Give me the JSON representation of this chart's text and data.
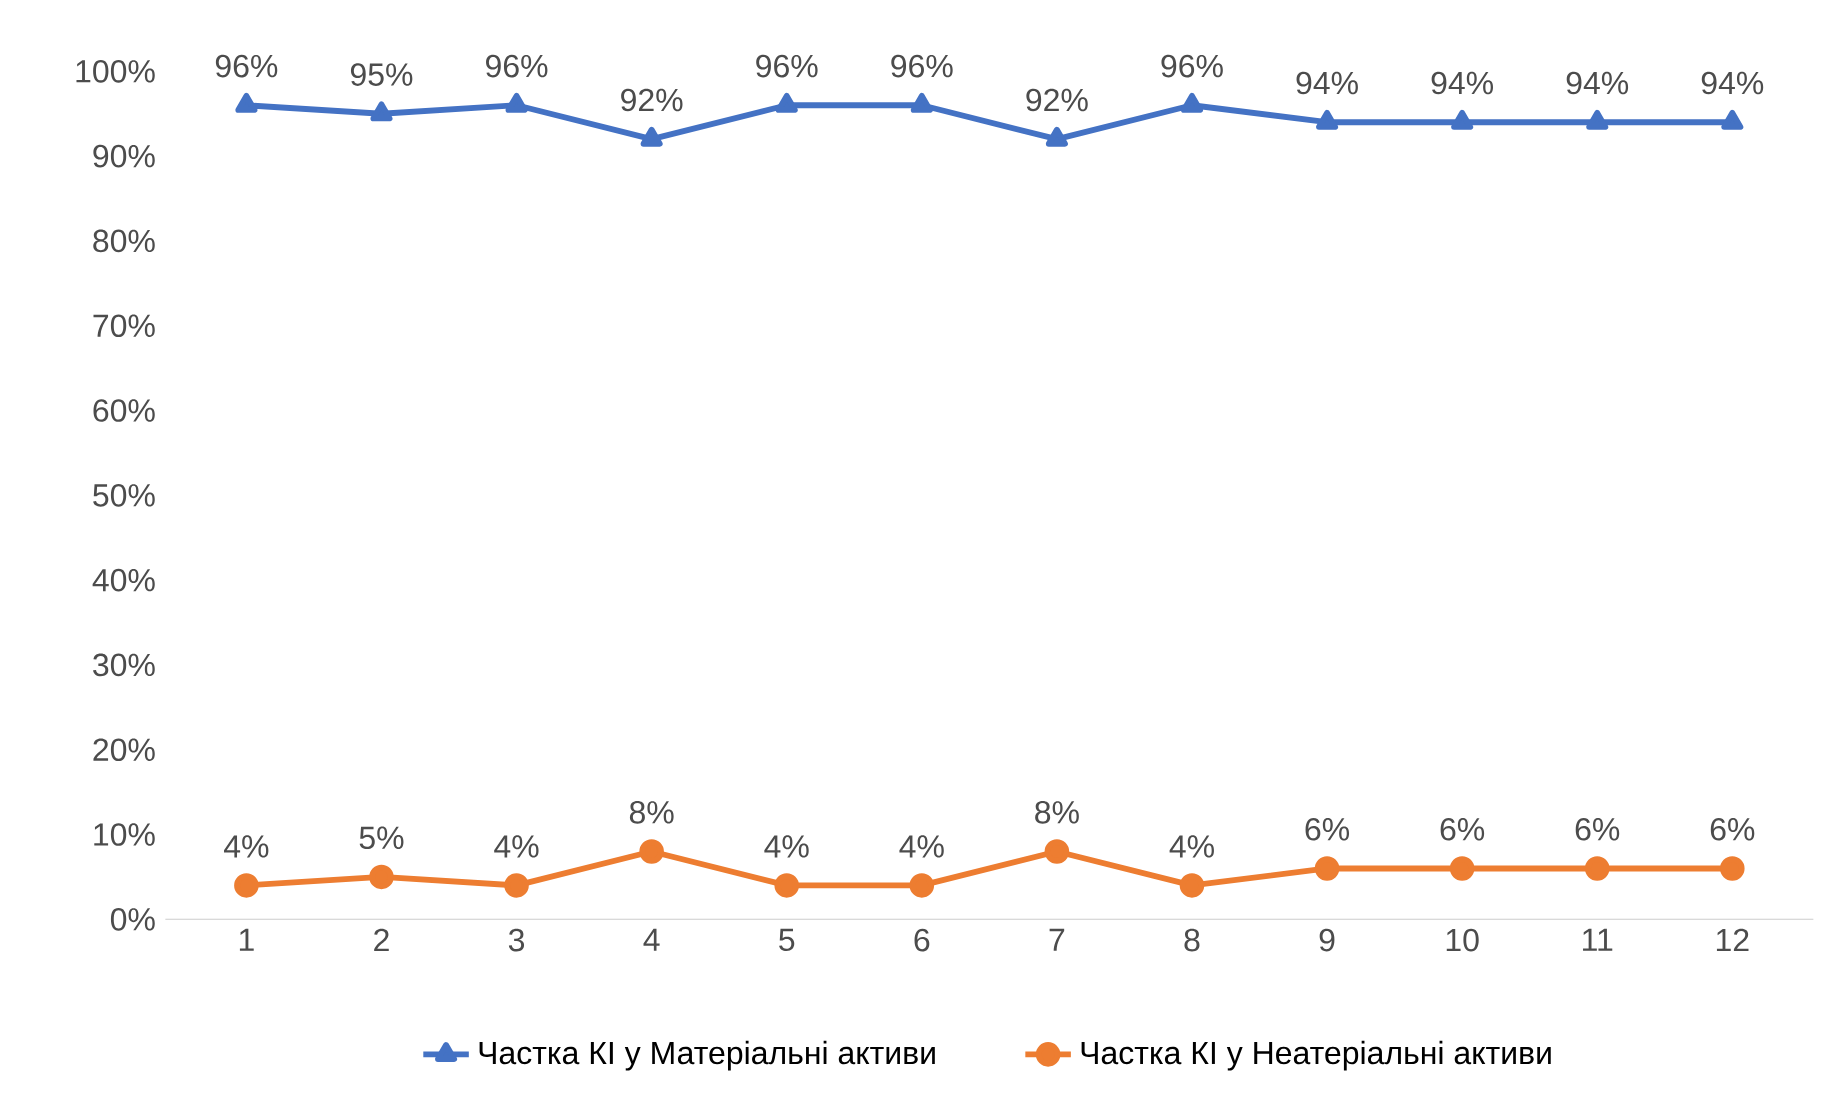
{
  "chart_data": {
    "type": "line",
    "categories": [
      "1",
      "2",
      "3",
      "4",
      "5",
      "6",
      "7",
      "8",
      "9",
      "10",
      "11",
      "12"
    ],
    "ylim": [
      0,
      100
    ],
    "yticks": [
      {
        "value": 0,
        "label": "0%"
      },
      {
        "value": 10,
        "label": "10%"
      },
      {
        "value": 20,
        "label": "20%"
      },
      {
        "value": 30,
        "label": "30%"
      },
      {
        "value": 40,
        "label": "40%"
      },
      {
        "value": 50,
        "label": "50%"
      },
      {
        "value": 60,
        "label": "60%"
      },
      {
        "value": 70,
        "label": "70%"
      },
      {
        "value": 80,
        "label": "80%"
      },
      {
        "value": 90,
        "label": "90%"
      },
      {
        "value": 100,
        "label": "100%"
      }
    ],
    "grid": false,
    "legend": "bottom",
    "line_style": "solid",
    "series": [
      {
        "name": "Частка КІ у Матеріальні активи",
        "color": "#4472c4",
        "marker": "triangle",
        "values": [
          96,
          95,
          96,
          92,
          96,
          96,
          92,
          96,
          94,
          94,
          94,
          94
        ],
        "value_labels": [
          "96%",
          "95%",
          "96%",
          "92%",
          "96%",
          "96%",
          "92%",
          "96%",
          "94%",
          "94%",
          "94%",
          "94%"
        ]
      },
      {
        "name": "Частка КІ у Неатеріальні активи",
        "color": "#ed7d31",
        "marker": "circle",
        "values": [
          4,
          5,
          4,
          8,
          4,
          4,
          8,
          4,
          6,
          6,
          6,
          6
        ],
        "value_labels": [
          "4%",
          "5%",
          "4%",
          "8%",
          "4%",
          "4%",
          "8%",
          "4%",
          "6%",
          "6%",
          "6%",
          "6%"
        ]
      }
    ]
  }
}
